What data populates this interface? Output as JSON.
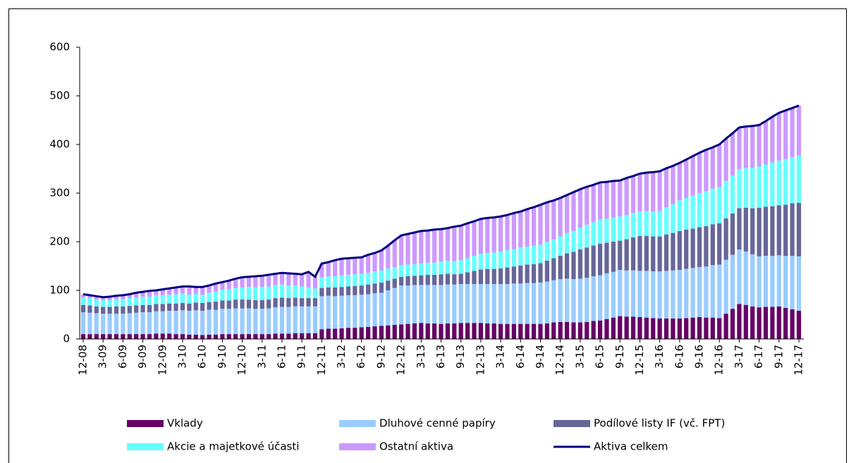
{
  "chart_data": {
    "type": "bar",
    "stacked": true,
    "categories": [
      "12-08",
      null,
      null,
      "3-09",
      null,
      null,
      "6-09",
      null,
      null,
      "9-09",
      null,
      null,
      "12-09",
      null,
      null,
      "3-10",
      null,
      null,
      "6-10",
      null,
      null,
      "9-10",
      null,
      null,
      "12-10",
      null,
      null,
      "3-11",
      null,
      null,
      "6-11",
      null,
      null,
      "9-11",
      null,
      null,
      "12-11",
      null,
      null,
      "3-12",
      null,
      null,
      "6-12",
      null,
      null,
      "9-12",
      null,
      null,
      "12-12",
      null,
      null,
      "3-13",
      null,
      null,
      "6-13",
      null,
      null,
      "9-13",
      null,
      null,
      "12-13",
      null,
      null,
      "3-14",
      null,
      null,
      "6-14",
      null,
      null,
      "9-14",
      null,
      null,
      "12-14",
      null,
      null,
      "3-15",
      null,
      null,
      "6-15",
      null,
      null,
      "9-15",
      null,
      null,
      "12-15",
      null,
      null,
      "3-16",
      null,
      null,
      "6-16",
      null,
      null,
      "9-16",
      null,
      null,
      "12-16",
      null,
      null,
      "3-17",
      null,
      null,
      "6-17",
      null,
      null,
      "9-17",
      null,
      null,
      "12-17"
    ],
    "series": [
      {
        "name": "Vklady",
        "color": "#660066",
        "values": [
          10,
          10,
          10,
          10,
          10,
          10,
          10,
          10,
          10,
          10,
          10,
          11,
          11,
          11,
          10,
          10,
          9,
          9,
          8,
          9,
          9,
          10,
          10,
          10,
          10,
          10,
          10,
          10,
          10,
          11,
          11,
          11,
          12,
          12,
          12,
          12,
          20,
          21,
          21,
          22,
          23,
          23,
          24,
          25,
          26,
          27,
          28,
          29,
          30,
          31,
          32,
          33,
          32,
          32,
          31,
          32,
          32,
          33,
          33,
          33,
          33,
          32,
          32,
          31,
          31,
          31,
          31,
          31,
          31,
          31,
          32,
          34,
          35,
          35,
          34,
          34,
          35,
          37,
          38,
          41,
          44,
          47,
          46,
          46,
          45,
          44,
          43,
          42,
          42,
          42,
          42,
          43,
          44,
          45,
          44,
          44,
          43,
          52,
          62,
          72,
          70,
          67,
          65,
          66,
          66,
          67,
          64,
          61,
          58
        ]
      },
      {
        "name": "Dluhové cenné papíry",
        "color": "#99ccff",
        "values": [
          45,
          44,
          43,
          42,
          42,
          42,
          42,
          43,
          44,
          45,
          45,
          46,
          46,
          47,
          48,
          49,
          49,
          50,
          50,
          51,
          51,
          52,
          52,
          53,
          53,
          53,
          52,
          52,
          53,
          54,
          55,
          55,
          55,
          55,
          55,
          55,
          68,
          68,
          67,
          67,
          67,
          67,
          67,
          67,
          68,
          68,
          72,
          76,
          80,
          79,
          79,
          78,
          79,
          79,
          80,
          80,
          80,
          80,
          80,
          80,
          80,
          81,
          81,
          82,
          82,
          83,
          83,
          84,
          84,
          85,
          86,
          87,
          88,
          89,
          89,
          90,
          91,
          92,
          93,
          94,
          94,
          95,
          95,
          95,
          95,
          96,
          96,
          97,
          98,
          99,
          100,
          101,
          102,
          103,
          105,
          108,
          110,
          111,
          111,
          112,
          110,
          107,
          105,
          105,
          105,
          105,
          107,
          110,
          112
        ]
      },
      {
        "name": "Podílové listy IF (vč. FPT)",
        "color": "#666699",
        "values": [
          15,
          15,
          14,
          14,
          14,
          15,
          15,
          15,
          15,
          15,
          15,
          15,
          15,
          15,
          15,
          15,
          15,
          16,
          16,
          16,
          17,
          17,
          17,
          18,
          18,
          18,
          18,
          18,
          18,
          19,
          19,
          18,
          18,
          17,
          17,
          17,
          17,
          17,
          18,
          18,
          18,
          19,
          19,
          20,
          20,
          21,
          20,
          19,
          18,
          19,
          19,
          20,
          21,
          21,
          22,
          22,
          21,
          21,
          24,
          27,
          30,
          31,
          31,
          32,
          34,
          35,
          37,
          38,
          39,
          40,
          43,
          45,
          48,
          52,
          56,
          60,
          62,
          63,
          65,
          63,
          62,
          60,
          64,
          68,
          72,
          72,
          72,
          72,
          75,
          77,
          80,
          81,
          81,
          82,
          83,
          84,
          85,
          85,
          85,
          85,
          90,
          95,
          100,
          101,
          102,
          103,
          105,
          108,
          110
        ]
      },
      {
        "name": "Akcie a majetkové účasti",
        "color": "#66ffff",
        "values": [
          15,
          15,
          14,
          14,
          14,
          15,
          15,
          16,
          16,
          17,
          17,
          18,
          18,
          18,
          19,
          19,
          18,
          18,
          17,
          19,
          20,
          22,
          23,
          24,
          25,
          26,
          26,
          27,
          27,
          27,
          27,
          26,
          25,
          24,
          22,
          20,
          22,
          23,
          23,
          24,
          24,
          24,
          24,
          24,
          25,
          25,
          25,
          24,
          24,
          24,
          24,
          24,
          25,
          25,
          26,
          27,
          27,
          28,
          29,
          31,
          32,
          33,
          34,
          35,
          36,
          36,
          37,
          37,
          38,
          38,
          39,
          39,
          40,
          42,
          43,
          45,
          47,
          48,
          50,
          50,
          50,
          50,
          50,
          50,
          50,
          51,
          51,
          52,
          56,
          59,
          63,
          65,
          68,
          70,
          72,
          73,
          75,
          77,
          78,
          80,
          82,
          83,
          85,
          87,
          90,
          92,
          94,
          95,
          97
        ]
      },
      {
        "name": "Ostatní aktiva",
        "color": "#cc99ff",
        "values": [
          7,
          6,
          7,
          6,
          7,
          7,
          8,
          8,
          10,
          10,
          12,
          10,
          12,
          13,
          14,
          15,
          17,
          14,
          16,
          15,
          17,
          16,
          18,
          19,
          21,
          21,
          23,
          23,
          24,
          23,
          24,
          25,
          24,
          25,
          32,
          24,
          28,
          29,
          33,
          34,
          34,
          34,
          34,
          37,
          38,
          41,
          47,
          55,
          61,
          63,
          65,
          67,
          66,
          68,
          67,
          67,
          71,
          71,
          72,
          71,
          72,
          72,
          72,
          72,
          72,
          74,
          74,
          77,
          79,
          82,
          81,
          80,
          79,
          78,
          80,
          79,
          78,
          77,
          76,
          75,
          75,
          74,
          76,
          76,
          78,
          79,
          81,
          82,
          80,
          79,
          77,
          79,
          81,
          83,
          85,
          85,
          87,
          87,
          87,
          86,
          85,
          86,
          85,
          89,
          94,
          98,
          100,
          101,
          103
        ]
      },
      {
        "name": "Aktiva celkem",
        "color": "#000080",
        "type": "line",
        "values": [
          92,
          90,
          88,
          86,
          87,
          89,
          90,
          92,
          95,
          97,
          99,
          100,
          102,
          104,
          106,
          108,
          108,
          107,
          107,
          110,
          114,
          117,
          120,
          124,
          127,
          128,
          129,
          130,
          132,
          134,
          136,
          135,
          134,
          133,
          138,
          128,
          155,
          158,
          162,
          165,
          166,
          167,
          168,
          173,
          177,
          182,
          192,
          203,
          213,
          216,
          219,
          222,
          223,
          225,
          226,
          228,
          231,
          233,
          238,
          242,
          247,
          249,
          250,
          252,
          255,
          259,
          262,
          267,
          271,
          276,
          281,
          285,
          290,
          296,
          302,
          308,
          313,
          317,
          322,
          323,
          325,
          326,
          331,
          335,
          340,
          342,
          343,
          345,
          351,
          356,
          362,
          369,
          376,
          383,
          389,
          394,
          400,
          412,
          423,
          435,
          437,
          438,
          440,
          448,
          457,
          465,
          470,
          475,
          480
        ]
      }
    ],
    "ylim": [
      0,
      600
    ],
    "yticks": [
      0,
      100,
      200,
      300,
      400,
      500,
      600
    ],
    "grid": false
  }
}
